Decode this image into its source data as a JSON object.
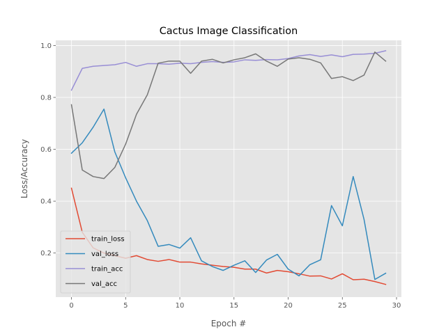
{
  "chart_data": {
    "type": "line",
    "title": "Cactus Image Classification",
    "xlabel": "Epoch #",
    "ylabel": "Loss/Accuracy",
    "xlim": [
      -1.45,
      30.45
    ],
    "ylim": [
      0.03,
      1.02
    ],
    "xticks": [
      0,
      5,
      10,
      15,
      20,
      25,
      30
    ],
    "yticks": [
      0.2,
      0.4,
      0.6,
      0.8,
      1.0
    ],
    "grid": true,
    "style": "ggplot",
    "legend_position": "lower-left",
    "x": [
      0,
      1,
      2,
      3,
      4,
      5,
      6,
      7,
      8,
      9,
      10,
      11,
      12,
      13,
      14,
      15,
      16,
      17,
      18,
      19,
      20,
      21,
      22,
      23,
      24,
      25,
      26,
      27,
      28,
      29
    ],
    "series": [
      {
        "name": "train_loss",
        "color": "#E24A33",
        "values": [
          0.45,
          0.28,
          0.22,
          0.2,
          0.19,
          0.18,
          0.19,
          0.175,
          0.168,
          0.175,
          0.165,
          0.165,
          0.158,
          0.153,
          0.148,
          0.145,
          0.138,
          0.138,
          0.123,
          0.133,
          0.128,
          0.12,
          0.111,
          0.112,
          0.1,
          0.12,
          0.097,
          0.099,
          0.09,
          0.079
        ]
      },
      {
        "name": "val_loss",
        "color": "#348ABD",
        "values": [
          0.585,
          0.625,
          0.685,
          0.755,
          0.59,
          0.49,
          0.4,
          0.325,
          0.226,
          0.233,
          0.219,
          0.259,
          0.17,
          0.148,
          0.133,
          0.153,
          0.17,
          0.125,
          0.173,
          0.195,
          0.138,
          0.112,
          0.155,
          0.174,
          0.383,
          0.305,
          0.495,
          0.33,
          0.098,
          0.122
        ]
      },
      {
        "name": "train_acc",
        "color": "#988ED5",
        "values": [
          0.828,
          0.912,
          0.92,
          0.923,
          0.926,
          0.935,
          0.92,
          0.93,
          0.93,
          0.928,
          0.932,
          0.93,
          0.935,
          0.938,
          0.935,
          0.937,
          0.945,
          0.943,
          0.946,
          0.945,
          0.95,
          0.96,
          0.965,
          0.958,
          0.964,
          0.957,
          0.966,
          0.967,
          0.97,
          0.98
        ]
      },
      {
        "name": "val_acc",
        "color": "#777777",
        "values": [
          0.772,
          0.52,
          0.495,
          0.487,
          0.53,
          0.62,
          0.735,
          0.81,
          0.932,
          0.94,
          0.94,
          0.893,
          0.94,
          0.947,
          0.933,
          0.945,
          0.953,
          0.968,
          0.94,
          0.92,
          0.948,
          0.953,
          0.947,
          0.933,
          0.873,
          0.88,
          0.865,
          0.886,
          0.975,
          0.94
        ]
      }
    ]
  }
}
